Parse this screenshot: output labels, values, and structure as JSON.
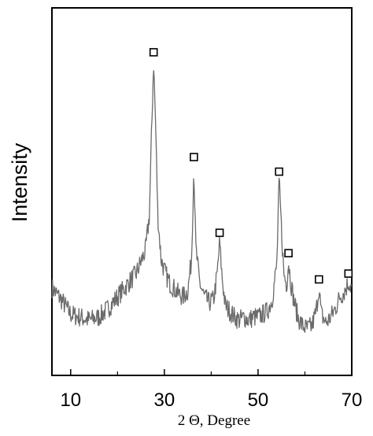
{
  "chart_data": {
    "type": "line",
    "title": "",
    "xlabel": "2 Θ, Degree",
    "ylabel": "Intensity",
    "xlim": [
      6,
      70
    ],
    "ylim": [
      0,
      100
    ],
    "x_ticks": [
      10,
      30,
      50,
      70
    ],
    "y_ticks": [],
    "grid": false,
    "legend": "none",
    "line_color": "#6b6b6b",
    "marker_symbol": "square-outline",
    "series": [
      {
        "points": [
          [
            6,
            20
          ],
          [
            8,
            16
          ],
          [
            10,
            11
          ],
          [
            12,
            10
          ],
          [
            14,
            9
          ],
          [
            16,
            10
          ],
          [
            18,
            13
          ],
          [
            20,
            17
          ],
          [
            22,
            21
          ],
          [
            24,
            25
          ],
          [
            25,
            29
          ],
          [
            26,
            33
          ],
          [
            26.8,
            45
          ],
          [
            27.3,
            75
          ],
          [
            27.7,
            98
          ],
          [
            28.1,
            78
          ],
          [
            28.6,
            45
          ],
          [
            29.3,
            30
          ],
          [
            30,
            26
          ],
          [
            31,
            22
          ],
          [
            32,
            20
          ],
          [
            33,
            18
          ],
          [
            34,
            17
          ],
          [
            35,
            19
          ],
          [
            35.8,
            30
          ],
          [
            36.3,
            62
          ],
          [
            36.7,
            34
          ],
          [
            37.5,
            22
          ],
          [
            38.5,
            17
          ],
          [
            39.5,
            15
          ],
          [
            40.5,
            16
          ],
          [
            41.3,
            25
          ],
          [
            41.8,
            36
          ],
          [
            42.3,
            24
          ],
          [
            43,
            14
          ],
          [
            44,
            12
          ],
          [
            45,
            10
          ],
          [
            46,
            9
          ],
          [
            47,
            10
          ],
          [
            48,
            9
          ],
          [
            49,
            10
          ],
          [
            50,
            10
          ],
          [
            51,
            11
          ],
          [
            52,
            12
          ],
          [
            53,
            16
          ],
          [
            54,
            28
          ],
          [
            54.5,
            57
          ],
          [
            55,
            40
          ],
          [
            55.5,
            25
          ],
          [
            56.1,
            21
          ],
          [
            56.5,
            29
          ],
          [
            57,
            22
          ],
          [
            57.6,
            16
          ],
          [
            58.5,
            10
          ],
          [
            59.5,
            7
          ],
          [
            60.5,
            6
          ],
          [
            61.5,
            7
          ],
          [
            62.4,
            12
          ],
          [
            63,
            20
          ],
          [
            63.5,
            11
          ],
          [
            64.5,
            8
          ],
          [
            65.5,
            10
          ],
          [
            66.5,
            13
          ],
          [
            67.5,
            17
          ],
          [
            68.5,
            19
          ],
          [
            69.3,
            22
          ],
          [
            70,
            20
          ]
        ]
      }
    ],
    "markers": [
      {
        "x": 27.7,
        "y": 98
      },
      {
        "x": 36.3,
        "y": 62
      },
      {
        "x": 41.8,
        "y": 36
      },
      {
        "x": 54.5,
        "y": 57
      },
      {
        "x": 56.5,
        "y": 29
      },
      {
        "x": 63.0,
        "y": 20
      },
      {
        "x": 69.3,
        "y": 22
      }
    ]
  }
}
